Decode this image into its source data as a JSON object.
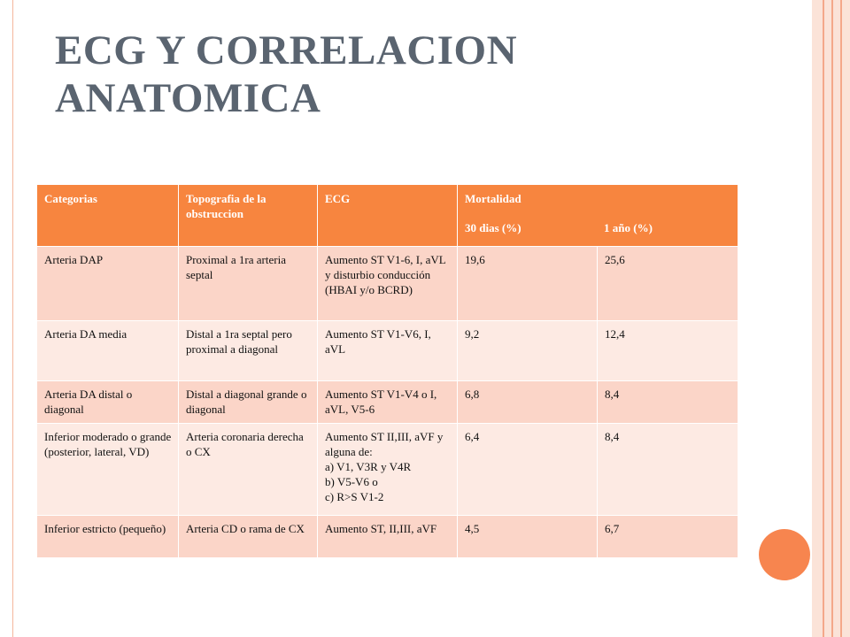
{
  "title": {
    "line1": "ECG Y CORRELACION",
    "line2": "ANATOMICA"
  },
  "table": {
    "headers": {
      "categorias": "Categorias",
      "topografia": "Topografia de la obstruccion",
      "ecg": "ECG",
      "mortalidad": "Mortalidad",
      "dias30": "30 dias (%)",
      "anio1": "1 año (%)"
    },
    "rows": [
      {
        "categoria": "Arteria DAP",
        "topografia": "Proximal a 1ra arteria septal",
        "ecg": "Aumento ST V1-6, I, aVL y disturbio conducción (HBAI y/o BCRD)",
        "d30": "19,6",
        "a1": "25,6"
      },
      {
        "categoria": "Arteria DA media",
        "topografia": "Distal a 1ra septal pero proximal a diagonal",
        "ecg": "Aumento ST V1-V6, I, aVL",
        "d30": "9,2",
        "a1": "12,4"
      },
      {
        "categoria": "Arteria DA distal o diagonal",
        "topografia": "Distal a diagonal grande o diagonal",
        "ecg": "Aumento ST V1-V4 o I, aVL, V5-6",
        "d30": "6,8",
        "a1": "8,4"
      },
      {
        "categoria": "Inferior moderado o grande (posterior, lateral, VD)",
        "topografia": "Arteria coronaria derecha o CX",
        "ecg": "Aumento ST II,III, aVF y alguna de:",
        "ecg_items": [
          "a)  V1, V3R y V4R",
          "b)  V5-V6 o",
          "c)  R>S V1-2"
        ],
        "d30": "6,4",
        "a1": "8,4"
      },
      {
        "categoria": "Inferior estricto (pequeño)",
        "topografia": "Arteria CD o rama de CX",
        "ecg": "Aumento ST, II,III, aVF",
        "d30": "4,5",
        "a1": "6,7"
      }
    ]
  },
  "colors": {
    "accent": "#f7853f",
    "row_dark": "#fbd5c8",
    "row_light": "#fdeae3",
    "title": "#5a6470"
  }
}
